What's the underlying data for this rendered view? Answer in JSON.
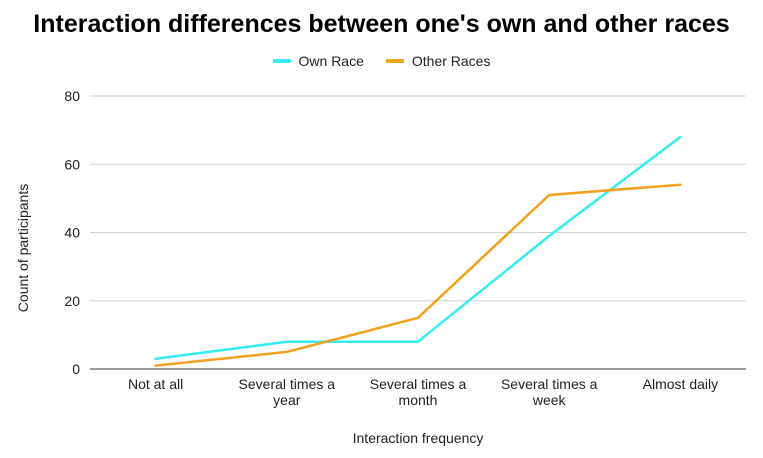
{
  "chart_data": {
    "type": "line",
    "title": "Interaction differences between one's own and other races",
    "xlabel": "Interaction frequency",
    "ylabel": "Count of participants",
    "categories": [
      [
        "Not at all"
      ],
      [
        "Several times a",
        "year"
      ],
      [
        "Several times a",
        "month"
      ],
      [
        "Several times a",
        "week"
      ],
      [
        "Almost daily"
      ]
    ],
    "ylim": [
      0,
      80
    ],
    "yticks": [
      "0",
      "20",
      "40",
      "60",
      "80"
    ],
    "grid": true,
    "legend_position": "top",
    "series": [
      {
        "name": "Own Race",
        "color": "#33ecf5",
        "values": [
          3,
          8,
          8,
          39,
          68
        ]
      },
      {
        "name": "Other Races",
        "color": "#f2a01f",
        "values": [
          1,
          5,
          15,
          51,
          54
        ]
      }
    ]
  }
}
